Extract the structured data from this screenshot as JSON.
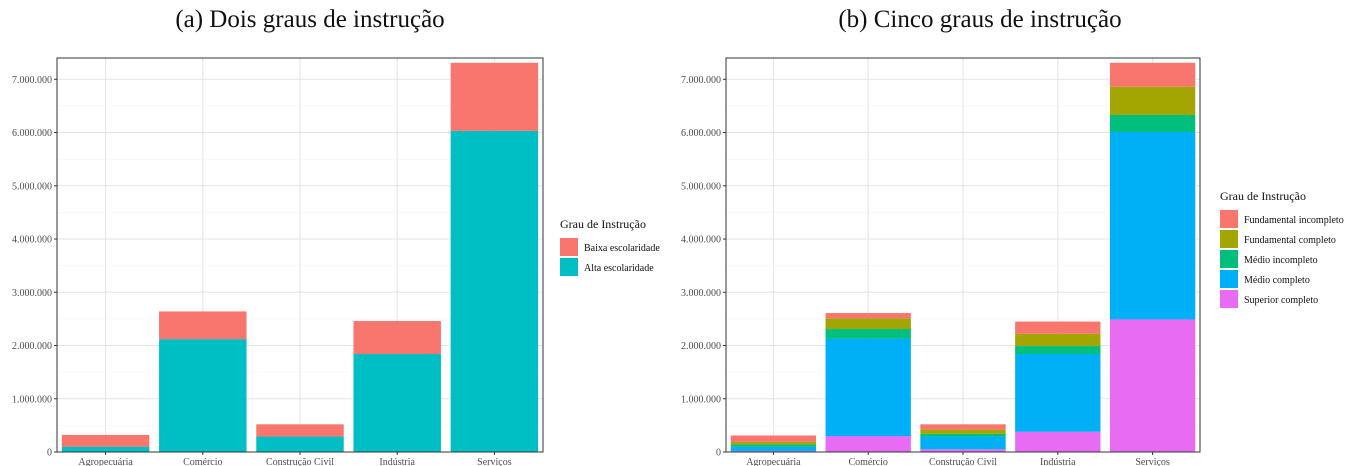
{
  "chart_data": [
    {
      "type": "bar",
      "stacked": true,
      "title": "(a)  Dois graus de instrução",
      "categories": [
        "Agropecuária",
        "Comércio",
        "Construção Civil",
        "Indústria",
        "Serviços"
      ],
      "series": [
        {
          "name": "Baixa escolaridade",
          "values": [
            220000,
            520000,
            230000,
            620000,
            1280000
          ],
          "color": "#F8766D"
        },
        {
          "name": "Alta escolaridade",
          "values": [
            100000,
            2120000,
            290000,
            1840000,
            6030000
          ],
          "color": "#00BFC4"
        }
      ],
      "ylim": [
        0,
        7400000
      ],
      "yticks": [
        0,
        1000000,
        2000000,
        3000000,
        4000000,
        5000000,
        6000000,
        7000000
      ],
      "yticklabels": [
        "0",
        "1.000.000",
        "2.000.000",
        "3.000.000",
        "4.000.000",
        "5.000.000",
        "6.000.000",
        "7.000.000"
      ],
      "xlabel": "",
      "ylabel": "",
      "grid": true,
      "legend_title": "Grau de Instrução",
      "legend_position": "right"
    },
    {
      "type": "bar",
      "stacked": true,
      "title": "(b) Cinco graus de instrução",
      "categories": [
        "Agropecuária",
        "Comércio",
        "Construção Civil",
        "Indústria",
        "Serviços"
      ],
      "series": [
        {
          "name": "Fundamental incompleto",
          "values": [
            120000,
            100000,
            100000,
            230000,
            450000
          ],
          "color": "#F8766D"
        },
        {
          "name": "Fundamental completo",
          "values": [
            50000,
            200000,
            80000,
            230000,
            530000
          ],
          "color": "#A3A500"
        },
        {
          "name": "Médio incompleto",
          "values": [
            40000,
            180000,
            50000,
            150000,
            320000
          ],
          "color": "#00BF7D"
        },
        {
          "name": "Médio completo",
          "values": [
            80000,
            1830000,
            240000,
            1460000,
            3520000
          ],
          "color": "#00B0F6"
        },
        {
          "name": "Superior completo",
          "values": [
            20000,
            300000,
            50000,
            380000,
            2490000
          ],
          "color": "#E76BF3"
        }
      ],
      "ylim": [
        0,
        7400000
      ],
      "yticks": [
        0,
        1000000,
        2000000,
        3000000,
        4000000,
        5000000,
        6000000,
        7000000
      ],
      "yticklabels": [
        "0",
        "1.000.000",
        "2.000.000",
        "3.000.000",
        "4.000.000",
        "5.000.000",
        "6.000.000",
        "7.000.000"
      ],
      "xlabel": "",
      "ylabel": "",
      "grid": true,
      "legend_title": "Grau de Instrução",
      "legend_position": "right"
    }
  ]
}
